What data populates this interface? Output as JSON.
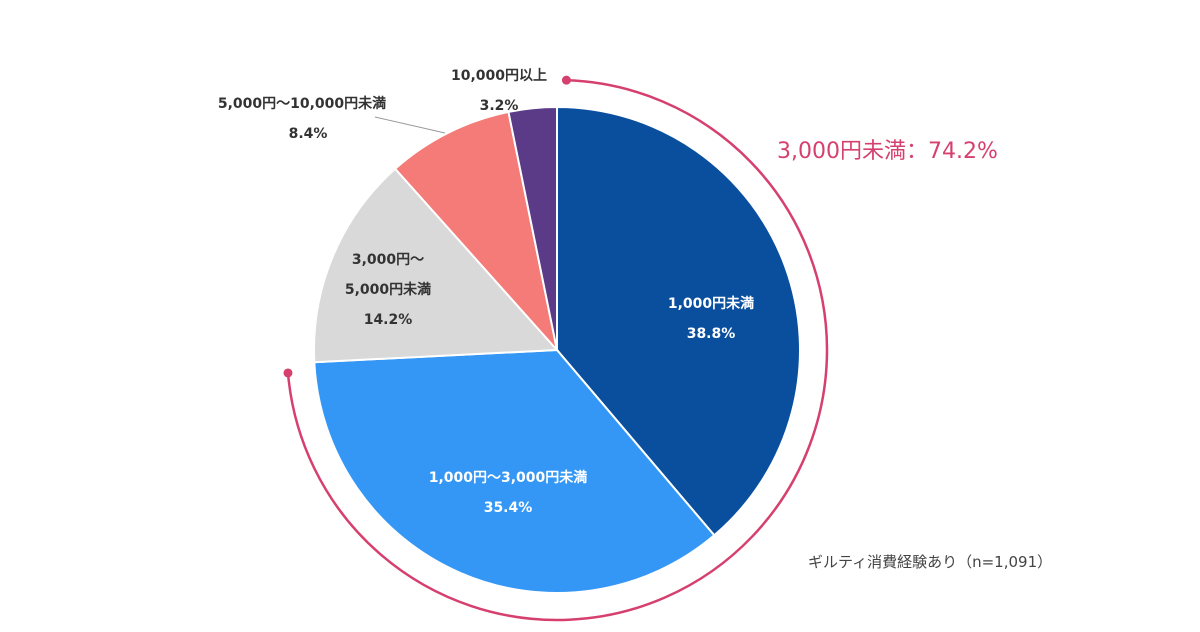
{
  "chart_data": {
    "type": "pie",
    "slices": [
      {
        "label": "1,000円未満",
        "value": 38.8,
        "display": "38.8%",
        "color": "#0a4f9e"
      },
      {
        "label": "1,000円〜3,000円未満",
        "value": 35.4,
        "display": "35.4%",
        "color": "#3497f5"
      },
      {
        "label_lines": [
          "3,000円〜",
          "5,000円未満"
        ],
        "label": "3,000円〜5,000円未満",
        "value": 14.2,
        "display": "14.2%",
        "color": "#d9d9d9"
      },
      {
        "label": "5,000円〜10,000円未満",
        "value": 8.4,
        "display": "8.4%",
        "color": "#f47b77"
      },
      {
        "label": "10,000円以上",
        "value": 3.2,
        "display": "3.2%",
        "color": "#5b3a87"
      }
    ],
    "start": "top",
    "direction": "clockwise",
    "highlight": {
      "text": "3,000円未満：74.2%",
      "value": 74.2,
      "color": "#d6406f"
    },
    "note": "ギルティ消費経験あり（n=1,091）"
  }
}
